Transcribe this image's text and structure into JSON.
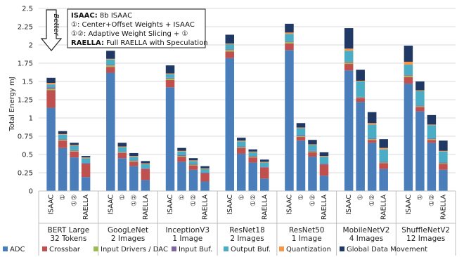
{
  "chart_data": {
    "type": "bar",
    "stacked": true,
    "ylabel": "Total Energy mJ",
    "ylim": [
      0,
      2.5
    ],
    "yticks": [
      "0",
      "0.25",
      "0.5",
      "0.75",
      "1",
      "1.25",
      "1.5",
      "1.75",
      "2",
      "2.25",
      "2.5"
    ],
    "grid": true,
    "legend_position": "bottom",
    "configs": [
      "ISAAC",
      "①",
      "①②",
      "RAELLA"
    ],
    "groups": [
      {
        "name": "BERT Large 32 Tokens",
        "bars": [
          [
            1.14,
            0.24,
            0.02,
            0.02,
            0.04,
            0.02,
            0.07
          ],
          [
            0.59,
            0.1,
            0.01,
            0.01,
            0.06,
            0.01,
            0.04
          ],
          [
            0.46,
            0.08,
            0.01,
            0.01,
            0.06,
            0.01,
            0.03
          ],
          [
            0.19,
            0.18,
            0.0,
            0.01,
            0.07,
            0.01,
            0.02
          ]
        ]
      },
      {
        "name": "GoogLeNet 2 Images",
        "bars": [
          [
            1.62,
            0.08,
            0.02,
            0.01,
            0.07,
            0.01,
            0.11
          ],
          [
            0.45,
            0.07,
            0.01,
            0.01,
            0.06,
            0.01,
            0.05
          ],
          [
            0.34,
            0.06,
            0.01,
            0.01,
            0.05,
            0.01,
            0.04
          ],
          [
            0.15,
            0.15,
            0.0,
            0.01,
            0.06,
            0.01,
            0.03
          ]
        ]
      },
      {
        "name": "InceptionV3 1 Image",
        "bars": [
          [
            1.42,
            0.1,
            0.02,
            0.01,
            0.05,
            0.01,
            0.11
          ],
          [
            0.4,
            0.07,
            0.01,
            0.01,
            0.05,
            0.01,
            0.04
          ],
          [
            0.29,
            0.06,
            0.01,
            0.01,
            0.04,
            0.01,
            0.03
          ],
          [
            0.13,
            0.11,
            0.0,
            0.01,
            0.05,
            0.01,
            0.03
          ]
        ]
      },
      {
        "name": "ResNet18 2 Images",
        "bars": [
          [
            1.82,
            0.09,
            0.02,
            0.01,
            0.07,
            0.01,
            0.12
          ],
          [
            0.51,
            0.08,
            0.01,
            0.01,
            0.07,
            0.01,
            0.04
          ],
          [
            0.39,
            0.07,
            0.01,
            0.01,
            0.05,
            0.01,
            0.03
          ],
          [
            0.17,
            0.15,
            0.0,
            0.01,
            0.06,
            0.01,
            0.03
          ]
        ]
      },
      {
        "name": "ResNet50 1 Image",
        "bars": [
          [
            1.93,
            0.09,
            0.02,
            0.01,
            0.1,
            0.02,
            0.12
          ],
          [
            0.69,
            0.05,
            0.01,
            0.01,
            0.1,
            0.01,
            0.06
          ],
          [
            0.47,
            0.06,
            0.01,
            0.01,
            0.08,
            0.01,
            0.06
          ],
          [
            0.21,
            0.15,
            0.0,
            0.01,
            0.1,
            0.01,
            0.05
          ]
        ]
      },
      {
        "name": "MobileNetV2 4 Images",
        "bars": [
          [
            1.65,
            0.09,
            0.02,
            0.01,
            0.15,
            0.03,
            0.28
          ],
          [
            1.22,
            0.05,
            0.01,
            0.01,
            0.21,
            0.01,
            0.15
          ],
          [
            0.66,
            0.04,
            0.01,
            0.01,
            0.19,
            0.02,
            0.15
          ],
          [
            0.3,
            0.08,
            0.01,
            0.01,
            0.17,
            0.02,
            0.12
          ]
        ]
      },
      {
        "name": "ShuffleNetV2 12 Images",
        "bars": [
          [
            1.47,
            0.09,
            0.02,
            0.01,
            0.14,
            0.04,
            0.22
          ],
          [
            1.09,
            0.06,
            0.01,
            0.01,
            0.2,
            0.01,
            0.12
          ],
          [
            0.66,
            0.04,
            0.01,
            0.01,
            0.18,
            0.01,
            0.13
          ],
          [
            0.29,
            0.08,
            0.01,
            0.01,
            0.15,
            0.01,
            0.14
          ]
        ]
      }
    ],
    "series": [
      {
        "name": "ADC",
        "color": "#4a7ebb"
      },
      {
        "name": "Crossbar",
        "color": "#c0504d"
      },
      {
        "name": "Input Drivers / DAC",
        "color": "#9bbb59"
      },
      {
        "name": "Input Buf.",
        "color": "#8064a2"
      },
      {
        "name": "Output Buf.",
        "color": "#4bacc6"
      },
      {
        "name": "Quantization",
        "color": "#f79646"
      },
      {
        "name": "Global Data Movement",
        "color": "#1f3864"
      }
    ],
    "annotations": {
      "better_label": "Better",
      "legend_box": [
        {
          "bold": "ISAAC:",
          "text": " 8b ISAAC"
        },
        {
          "bold": "",
          "text": "①: Center+Offset Weights + ISAAC"
        },
        {
          "bold": "",
          "text": "①②: Adaptive Weight Slicing + ①"
        },
        {
          "bold": "RAELLA:",
          "text": " Full RAELLA with Speculation"
        }
      ]
    }
  }
}
